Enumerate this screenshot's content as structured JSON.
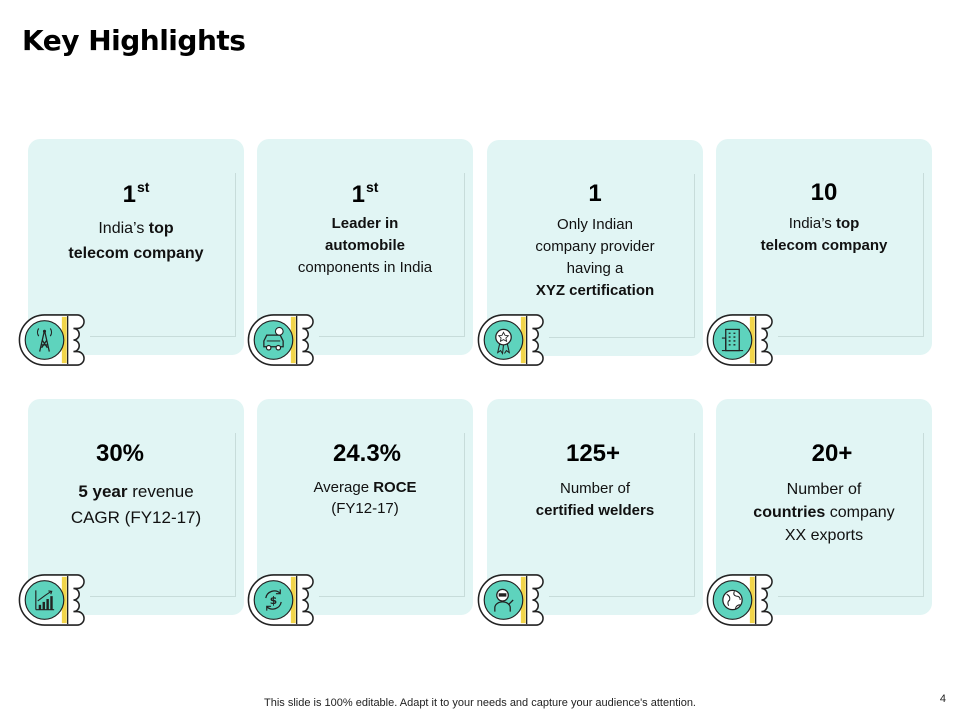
{
  "title": "Key Highlights",
  "cards": [
    {
      "value": "1",
      "sup": "st",
      "line1_a": "India’s ",
      "line1_b": "top",
      "line2": "telecom company",
      "icon": "tower-icon"
    },
    {
      "value": "1",
      "sup": "st",
      "line1_a": "Leader",
      "line1_b": " in",
      "line2": "automobile",
      "line3": "components in India",
      "icon": "car-icon"
    },
    {
      "value": "1",
      "line1": "Only Indian",
      "line2": "company provider",
      "line3": "having a",
      "line4": "XYZ certification",
      "icon": "award-icon"
    },
    {
      "value": "10",
      "line1_a": "India’s ",
      "line1_b": "top",
      "line2": "telecom company",
      "icon": "building-icon"
    },
    {
      "value": "30%",
      "line1_a": "5 year",
      "line1_b": " revenue",
      "line2": "CAGR  (FY12-17)",
      "icon": "growth-chart-icon"
    },
    {
      "value": "24.3%",
      "line1_a": "Average ",
      "line1_b": "ROCE",
      "line2": "(FY12-17)",
      "icon": "money-cycle-icon"
    },
    {
      "value": "125+",
      "line1": "Number of",
      "line2": "certified welders",
      "icon": "welder-icon"
    },
    {
      "value": "20+",
      "line1": "Number of",
      "line2_a": "countries",
      "line2_b": " company",
      "line3": "XX exports",
      "icon": "globe-icon"
    }
  ],
  "footer": "This slide is 100% editable. Adapt it to your needs and capture your audience's attention.",
  "page_number": "4",
  "colors": {
    "card_bg": "#e1f5f4",
    "icon_circle": "#5ed3bd",
    "accent_yellow": "#f2d54a"
  }
}
